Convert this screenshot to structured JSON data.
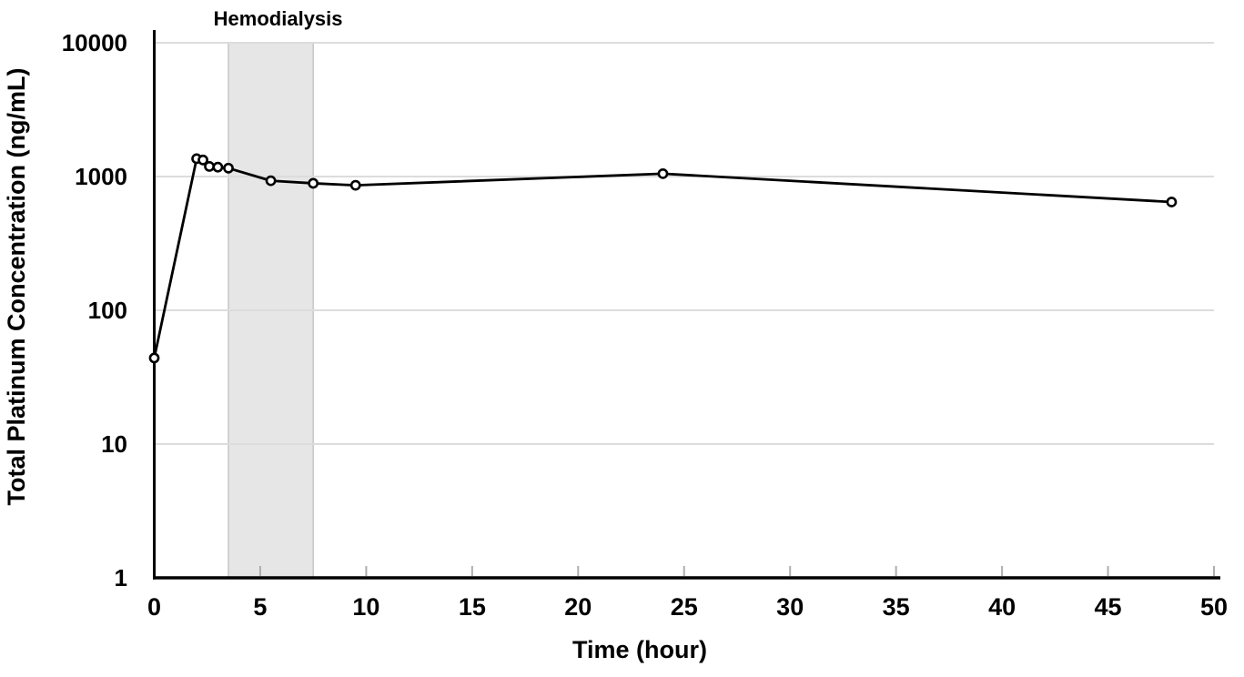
{
  "chart_data": {
    "type": "line",
    "title": "",
    "xlabel": "Time (hour)",
    "ylabel": "Total Platinum Concentration (ng/mL)",
    "x_axis": {
      "min": 0,
      "max": 50,
      "ticks": [
        0,
        5,
        10,
        15,
        20,
        25,
        30,
        35,
        40,
        45,
        50
      ]
    },
    "y_axis": {
      "scale": "log",
      "min": 1,
      "max": 10000,
      "ticks": [
        1,
        10,
        100,
        1000,
        10000
      ]
    },
    "grid": "horizontal",
    "legend": "none",
    "series": [
      {
        "name": "Total platinum concentration",
        "marker": "open-circle",
        "color": "#000000",
        "points": [
          {
            "x": 0,
            "y": 44
          },
          {
            "x": 2,
            "y": 1360
          },
          {
            "x": 2.3,
            "y": 1330
          },
          {
            "x": 2.6,
            "y": 1190
          },
          {
            "x": 3,
            "y": 1175
          },
          {
            "x": 3.5,
            "y": 1155
          },
          {
            "x": 5.5,
            "y": 930
          },
          {
            "x": 7.5,
            "y": 890
          },
          {
            "x": 9.5,
            "y": 860
          },
          {
            "x": 24,
            "y": 1050
          },
          {
            "x": 48,
            "y": 645
          }
        ]
      }
    ],
    "annotation": {
      "label": "Hemodialysis",
      "band_x_start": 3.5,
      "band_x_end": 7.5,
      "band_fill": "#e6e6e6",
      "band_border": "#c6c6c6"
    },
    "colors": {
      "line": "#000000",
      "marker_fill": "#ffffff",
      "gridline": "#dcdcdc",
      "axis": "#000000",
      "tick": "#aeaeae",
      "text": "#000000"
    }
  }
}
